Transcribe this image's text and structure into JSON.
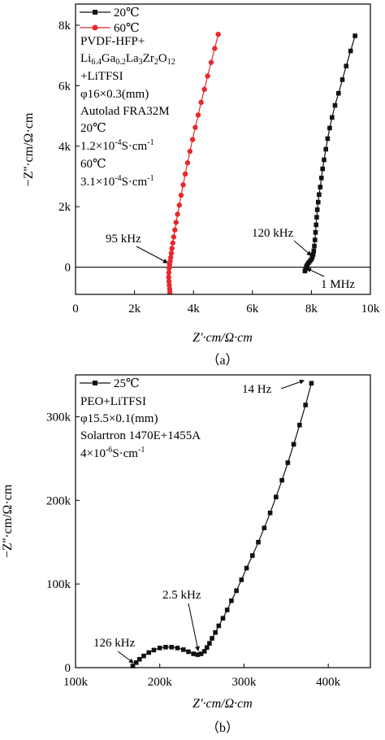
{
  "chart_data": [
    {
      "panel_label": "（a）",
      "type": "scatter",
      "xlabel": "Z'·cm/Ω·cm",
      "ylabel": "−Z''·cm/Ω·cm",
      "xlim": [
        0,
        10000
      ],
      "ylim": [
        -900,
        8700
      ],
      "x_ticks": [
        {
          "v": 0,
          "label": "0"
        },
        {
          "v": 2000,
          "label": "2k"
        },
        {
          "v": 4000,
          "label": "4k"
        },
        {
          "v": 6000,
          "label": "6k"
        },
        {
          "v": 8000,
          "label": "8k"
        },
        {
          "v": 10000,
          "label": "10k"
        }
      ],
      "y_ticks": [
        {
          "v": 0,
          "label": "0"
        },
        {
          "v": 2000,
          "label": "2k"
        },
        {
          "v": 4000,
          "label": "4k"
        },
        {
          "v": 6000,
          "label": "6k"
        },
        {
          "v": 8000,
          "label": "8k"
        }
      ],
      "zero_line": true,
      "legend_position": "top-left",
      "series": [
        {
          "name": "20℃",
          "color": "#111111",
          "marker": "square",
          "x": [
            7780,
            7800,
            7830,
            7860,
            7900,
            7950,
            8000,
            8030,
            8060,
            8080,
            8100,
            8120,
            8140,
            8160,
            8180,
            8200,
            8230,
            8260,
            8300,
            8340,
            8380,
            8430,
            8490,
            8550,
            8620,
            8700,
            8800,
            8920,
            9050,
            9180,
            9330,
            9480
          ],
          "y": [
            -130,
            -60,
            20,
            80,
            140,
            200,
            260,
            330,
            420,
            540,
            700,
            900,
            1150,
            1400,
            1650,
            1900,
            2150,
            2400,
            2650,
            2950,
            3250,
            3550,
            3900,
            4250,
            4600,
            4950,
            5350,
            5750,
            6200,
            6650,
            7150,
            7650
          ]
        },
        {
          "name": "60℃",
          "color": "#e8282a",
          "marker": "circle",
          "x": [
            3200,
            3190,
            3180,
            3170,
            3160,
            3165,
            3175,
            3190,
            3210,
            3230,
            3250,
            3270,
            3300,
            3330,
            3370,
            3410,
            3460,
            3520,
            3580,
            3650,
            3720,
            3800,
            3880,
            3970,
            4060,
            4160,
            4260,
            4370,
            4480,
            4600,
            4720,
            4840
          ],
          "y": [
            -830,
            -720,
            -600,
            -470,
            -330,
            -180,
            -40,
            80,
            200,
            320,
            460,
            620,
            800,
            1000,
            1230,
            1480,
            1750,
            2050,
            2380,
            2720,
            3080,
            3450,
            3830,
            4220,
            4620,
            5030,
            5450,
            5880,
            6320,
            6770,
            7230,
            7700
          ]
        }
      ],
      "legend_text_lines": [
        "PVDF-HFP+",
        "Li6.4Ga0.2La3Zr2O12",
        "+LiTFSI",
        "φ16×0.3(mm)",
        "Autolad FRA32M",
        "20℃",
        "1.2×10-4S·cm-1",
        "60℃",
        "3.1×10-4S·cm-1"
      ],
      "annotations": [
        "95 kHz",
        "120 kHz",
        "1 MHz"
      ]
    },
    {
      "panel_label": "（b）",
      "type": "scatter",
      "xlabel": "Z'·cm/Ω·cm",
      "ylabel": "−Z''·cm/Ω·cm",
      "xlim": [
        100000,
        450000
      ],
      "ylim": [
        0,
        350000
      ],
      "x_ticks": [
        {
          "v": 100000,
          "label": "100k"
        },
        {
          "v": 200000,
          "label": "200k"
        },
        {
          "v": 300000,
          "label": "300k"
        },
        {
          "v": 400000,
          "label": "400k"
        }
      ],
      "y_ticks": [
        {
          "v": 0,
          "label": "0"
        },
        {
          "v": 100000,
          "label": "100k"
        },
        {
          "v": 200000,
          "label": "200k"
        },
        {
          "v": 300000,
          "label": "300k"
        }
      ],
      "legend_position": "top-left",
      "series": [
        {
          "name": "25℃",
          "color": "#111111",
          "marker": "square",
          "x": [
            168000,
            172000,
            176000,
            181000,
            187000,
            193000,
            200000,
            207000,
            214000,
            221000,
            228000,
            234000,
            240000,
            245000,
            249000,
            253000,
            256000,
            259000,
            262000,
            266000,
            270000,
            275000,
            280000,
            285000,
            291000,
            297000,
            303000,
            310000,
            317000,
            324000,
            331000,
            338000,
            345000,
            352000,
            359000,
            366000,
            373000,
            380000
          ],
          "y": [
            2000,
            6000,
            10000,
            14000,
            18000,
            21000,
            23500,
            24500,
            24500,
            23500,
            21500,
            19000,
            16500,
            15500,
            16500,
            19500,
            24000,
            29000,
            35000,
            42000,
            50000,
            59000,
            69000,
            80000,
            92000,
            105000,
            119000,
            134000,
            150000,
            167000,
            185000,
            204000,
            224000,
            245000,
            267000,
            290000,
            314000,
            340000
          ]
        }
      ],
      "legend_text_lines": [
        "PEO+LiTFSI",
        "φ15.5×0.1(mm)",
        "Solartron 1470E+1455A",
        "4×10-6S·cm-1"
      ],
      "annotations": [
        "126 kHz",
        "2.5 kHz",
        "14 Hz"
      ]
    }
  ],
  "panel_a": {
    "label": "（a）",
    "xlabel": "Z'·cm/Ω·cm",
    "ylabel": "−Z''·cm/Ω·cm",
    "legend": {
      "s1": "20℃",
      "s2": "60℃",
      "l1": "PVDF-HFP+",
      "l2_li": "Li",
      "l2_s1": "6.4",
      "l2_ga": "Ga",
      "l2_s2": "0.2",
      "l2_la": "La",
      "l2_s3": "3",
      "l2_zr": "Zr",
      "l2_s4": "2",
      "l2_o": "O",
      "l2_s5": "12",
      "l3": "+LiTFSI",
      "l4": "φ16×0.3(mm)",
      "l5": "Autolad FRA32M",
      "l6": "20℃",
      "l7_base": "1.2×10",
      "l7_exp": "-4",
      "l7_unit": "S·cm",
      "l7_exp2": "-1",
      "l8": "60℃",
      "l9_base": "3.1×10",
      "l9_exp": "-4",
      "l9_unit": "S·cm",
      "l9_exp2": "-1"
    },
    "ann_95": "95 kHz",
    "ann_120": "120 kHz",
    "ann_1m": "1 MHz"
  },
  "panel_b": {
    "label": "（b）",
    "xlabel": "Z'·cm/Ω·cm",
    "ylabel": "−Z''·cm/Ω·cm",
    "legend": {
      "s1": "25℃",
      "l1": "PEO+LiTFSI",
      "l2": "φ15.5×0.1(mm)",
      "l3": "Solartron 1470E+1455A",
      "l4_base": "4×10",
      "l4_exp": "-6",
      "l4_unit": "S·cm",
      "l4_exp2": "-1"
    },
    "ann_126": "126 kHz",
    "ann_25": "2.5 kHz",
    "ann_14": "14 Hz"
  }
}
